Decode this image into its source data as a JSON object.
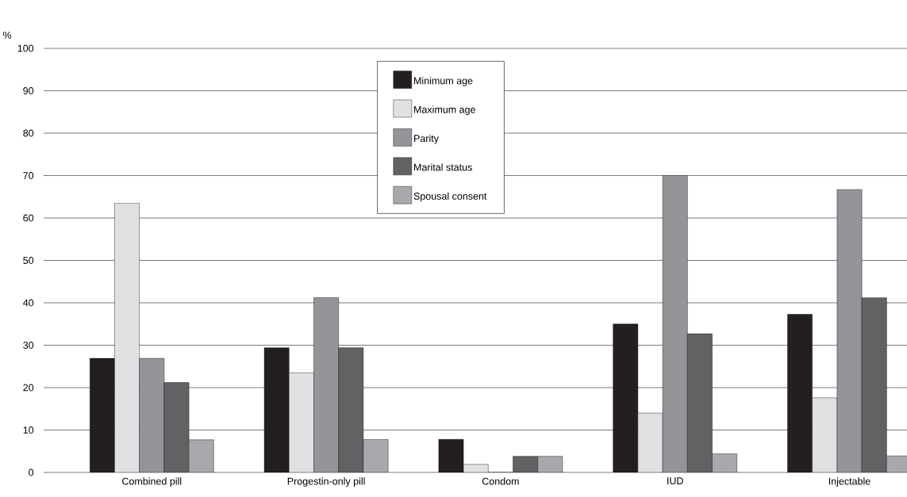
{
  "chart_data": {
    "type": "bar",
    "ylabel": "%",
    "categories": [
      "Combined pill",
      "Progestin-only pill",
      "Condom",
      "IUD",
      "Injectable"
    ],
    "series": [
      {
        "name": "Minimum age",
        "color": "#231f20",
        "values": [
          26.9,
          29.4,
          7.8,
          35,
          37.3
        ]
      },
      {
        "name": "Maximum age",
        "color": "#e0e1e3",
        "values": [
          63.5,
          23.5,
          1.9,
          14,
          17.6
        ]
      },
      {
        "name": "Parity",
        "color": "#939598",
        "values": [
          26.9,
          41.2,
          0,
          70,
          66.7
        ]
      },
      {
        "name": "Marital status",
        "color": "#626264",
        "values": [
          21.2,
          29.4,
          3.8,
          32.7,
          41.2
        ]
      },
      {
        "name": "Spousal consent",
        "color": "#a7a9ac",
        "values": [
          7.7,
          7.8,
          3.8,
          4.4,
          3.9
        ]
      }
    ],
    "ylim": [
      0,
      100
    ],
    "yticks": [
      0,
      10,
      20,
      30,
      40,
      50,
      60,
      70,
      80,
      90,
      100
    ],
    "grid": "y",
    "legend": "top"
  }
}
